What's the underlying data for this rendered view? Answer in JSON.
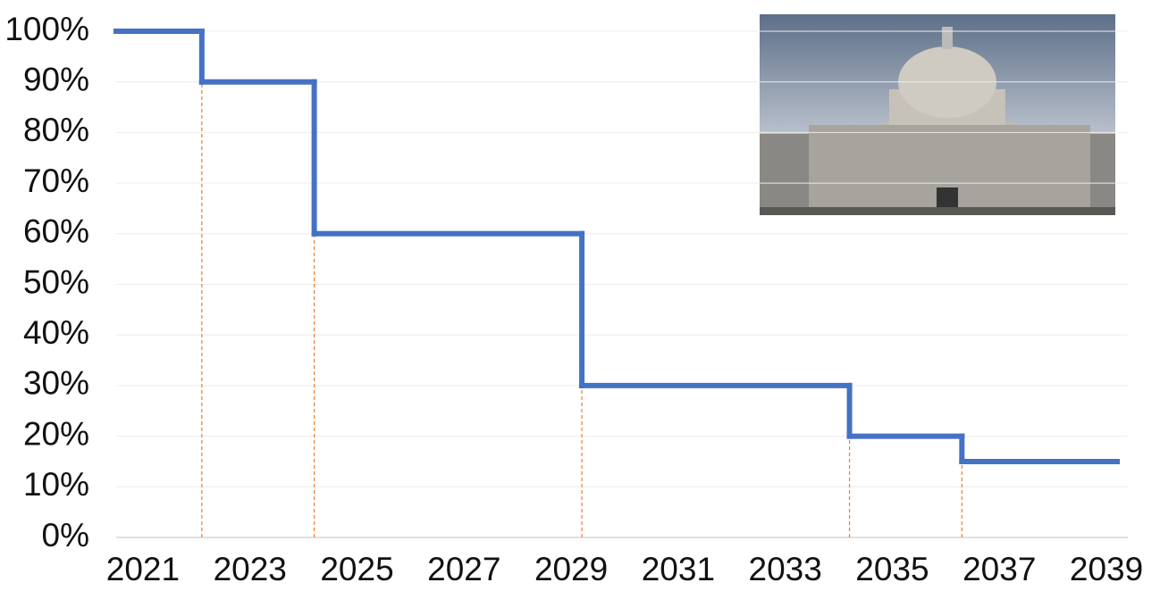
{
  "chart_data": {
    "type": "step-line",
    "x": [
      2020.5,
      2022.1,
      2024.2,
      2029.2,
      2034.2,
      2036.3,
      2039.2
    ],
    "series": [
      {
        "color": "#4472c4",
        "values": [
          100,
          90,
          60,
          30,
          20,
          15,
          15
        ]
      }
    ],
    "drop_line_color": "#ed7d31",
    "xlim": [
      2020.5,
      2039.4
    ],
    "xticks": [
      2021,
      2023,
      2025,
      2027,
      2029,
      2031,
      2033,
      2035,
      2037,
      2039
    ],
    "ylim": [
      0,
      100
    ],
    "yticks": [
      {
        "value": 0,
        "label": "0%"
      },
      {
        "value": 10,
        "label": "10%"
      },
      {
        "value": 20,
        "label": "20%"
      },
      {
        "value": 30,
        "label": "30%"
      },
      {
        "value": 40,
        "label": "40%"
      },
      {
        "value": 50,
        "label": "50%"
      },
      {
        "value": 60,
        "label": "60%"
      },
      {
        "value": 70,
        "label": "70%"
      },
      {
        "value": 80,
        "label": "80%"
      },
      {
        "value": 90,
        "label": "90%"
      },
      {
        "value": 100,
        "label": "100%"
      }
    ],
    "grid": true
  }
}
